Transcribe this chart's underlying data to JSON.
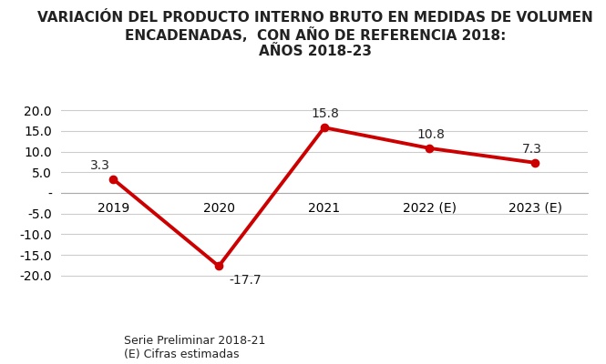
{
  "title_line1": "VARIACIÓN DEL PRODUCTO INTERNO BRUTO EN MEDIDAS DE VOLUMEN",
  "title_line2": "ENCADENADAS,  CON AÑO DE REFERENCIA 2018:",
  "title_line3": "AÑOS 2018-23",
  "x_labels": [
    "2019",
    "2020",
    "2021",
    "2022 (E)",
    "2023 (E)"
  ],
  "x_values": [
    0,
    1,
    2,
    3,
    4
  ],
  "y_values": [
    3.3,
    -17.7,
    15.8,
    10.8,
    7.3
  ],
  "line_color": "#cc0000",
  "line_width": 2.8,
  "marker": "o",
  "marker_size": 6,
  "ylim": [
    -22,
    22
  ],
  "yticks": [
    -20.0,
    -15.0,
    -10.0,
    -5.0,
    0.0,
    5.0,
    10.0,
    15.0,
    20.0
  ],
  "ytick_labels": [
    "-20.0",
    "-15.0",
    "-10.0",
    "-5.0",
    "-",
    "5.0",
    "10.0",
    "15.0",
    "20.0"
  ],
  "grid_color": "#cccccc",
  "background_color": "#ffffff",
  "title_fontsize": 11,
  "tick_fontsize": 10,
  "annotation_fontsize": 10,
  "footnote_line1": "Serie Preliminar 2018-21",
  "footnote_line2": "(E) Cifras estimadas",
  "footnote_fontsize": 9
}
